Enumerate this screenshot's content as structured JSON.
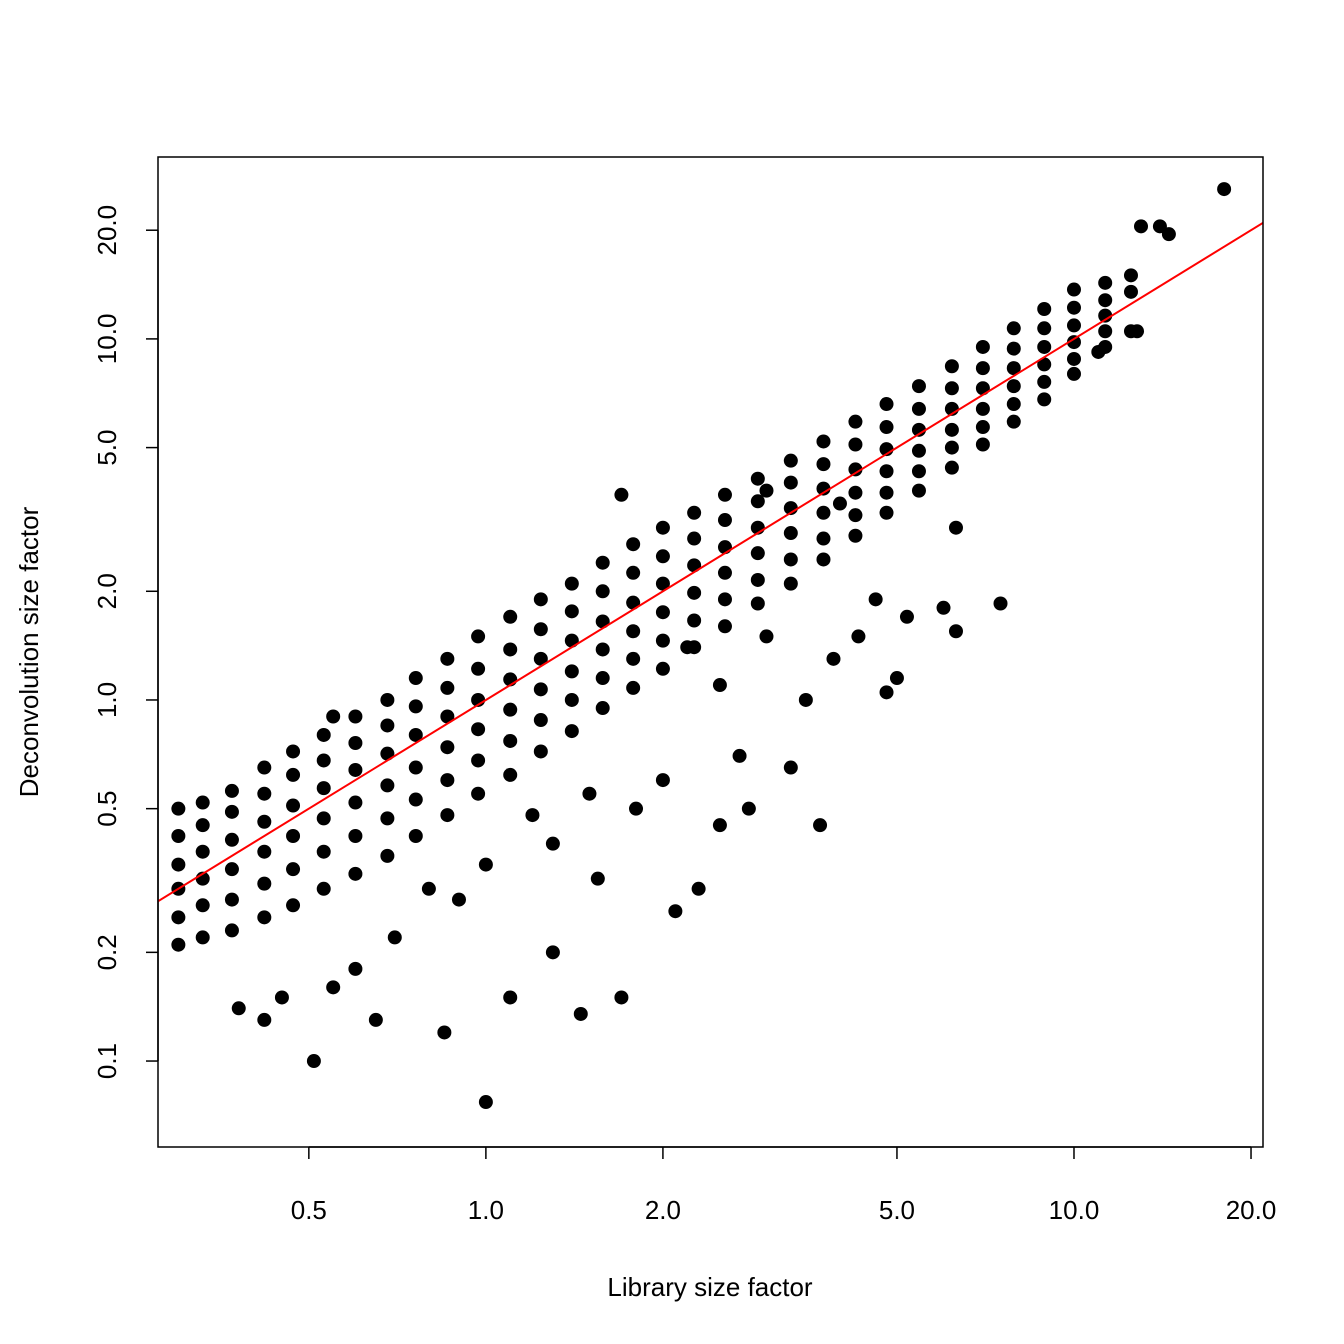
{
  "chart_data": {
    "type": "scatter",
    "x_label": "Library size factor",
    "y_label": "Deconvolution size factor",
    "xscale": "log",
    "yscale": "log",
    "xlim": [
      0.277,
      20.96
    ],
    "ylim": [
      0.0578,
      31.9
    ],
    "xticks": [
      0.5,
      {
        "value": 1,
        "label": "1.0"
      },
      {
        "value": 2,
        "label": "2.0"
      },
      {
        "value": 5,
        "label": "5.0"
      },
      {
        "value": 10,
        "label": "10.0"
      },
      {
        "value": 20,
        "label": "20.0"
      }
    ],
    "yticks": [
      0.1,
      0.2,
      0.5,
      {
        "value": 1,
        "label": "1.0"
      },
      {
        "value": 2,
        "label": "2.0"
      },
      {
        "value": 5,
        "label": "5.0"
      },
      {
        "value": 10,
        "label": "10.0"
      },
      {
        "value": 20,
        "label": "20.0"
      }
    ],
    "reference_line": {
      "slope": 1,
      "intercept": 0,
      "color": "#ff0000"
    },
    "color": "#000000",
    "x": [
      0.3,
      0.3,
      0.3,
      0.3,
      0.3,
      0.3,
      0.33,
      0.33,
      0.33,
      0.33,
      0.33,
      0.33,
      0.37,
      0.37,
      0.37,
      0.37,
      0.37,
      0.37,
      0.42,
      0.42,
      0.42,
      0.42,
      0.42,
      0.42,
      0.47,
      0.47,
      0.47,
      0.47,
      0.47,
      0.47,
      0.53,
      0.53,
      0.53,
      0.53,
      0.53,
      0.53,
      0.6,
      0.6,
      0.6,
      0.6,
      0.6,
      0.6,
      0.68,
      0.68,
      0.68,
      0.68,
      0.68,
      0.68,
      0.76,
      0.76,
      0.76,
      0.76,
      0.76,
      0.76,
      0.86,
      0.86,
      0.86,
      0.86,
      0.86,
      0.86,
      0.97,
      0.97,
      0.97,
      0.97,
      0.97,
      0.97,
      1.1,
      1.1,
      1.1,
      1.1,
      1.1,
      1.1,
      1.24,
      1.24,
      1.24,
      1.24,
      1.24,
      1.24,
      1.4,
      1.4,
      1.4,
      1.4,
      1.4,
      1.4,
      1.58,
      1.58,
      1.58,
      1.58,
      1.58,
      1.58,
      1.78,
      1.78,
      1.78,
      1.78,
      1.78,
      1.78,
      2.0,
      2.0,
      2.0,
      2.0,
      2.0,
      2.0,
      2.26,
      2.26,
      2.26,
      2.26,
      2.26,
      2.26,
      2.55,
      2.55,
      2.55,
      2.55,
      2.55,
      2.55,
      2.9,
      2.9,
      2.9,
      2.9,
      2.9,
      2.9,
      3.3,
      3.3,
      3.3,
      3.3,
      3.3,
      3.3,
      3.75,
      3.75,
      3.75,
      3.75,
      3.75,
      3.75,
      4.25,
      4.25,
      4.25,
      4.25,
      4.25,
      4.25,
      4.8,
      4.8,
      4.8,
      4.8,
      4.8,
      4.8,
      5.45,
      5.45,
      5.45,
      5.45,
      5.45,
      5.45,
      6.2,
      6.2,
      6.2,
      6.2,
      6.2,
      6.2,
      7.0,
      7.0,
      7.0,
      7.0,
      7.0,
      7.0,
      7.9,
      7.9,
      7.9,
      7.9,
      7.9,
      7.9,
      8.9,
      8.9,
      8.9,
      8.9,
      8.9,
      8.9,
      10,
      10,
      10,
      10,
      10,
      10,
      11.3,
      11.3,
      11.3,
      11.3,
      11.3,
      12.5,
      12.5,
      12.5,
      13,
      14,
      14.5,
      18,
      12.8,
      11,
      2.2,
      2.5,
      3.0,
      3.5,
      3.9,
      4.3,
      4.6,
      5.2,
      6.0,
      7.5,
      6.3,
      5.0,
      4.8,
      3.3,
      3.7,
      2.8,
      2.5,
      1.8,
      1.5,
      1.3,
      1.2,
      1.0,
      0.8,
      0.9,
      0.7,
      0.6,
      0.55,
      0.45,
      0.42,
      0.38,
      0.51,
      0.65,
      0.85,
      1.0,
      1.3,
      1.1,
      1.45,
      1.7,
      2.3,
      2.1,
      1.55,
      2.0,
      2.7,
      6.3,
      4.0,
      3.0,
      1.7,
      0.55
    ],
    "values": [
      0.21,
      0.25,
      0.3,
      0.35,
      0.42,
      0.5,
      0.22,
      0.27,
      0.32,
      0.38,
      0.45,
      0.52,
      0.23,
      0.28,
      0.34,
      0.41,
      0.49,
      0.56,
      0.25,
      0.31,
      0.38,
      0.46,
      0.55,
      0.65,
      0.27,
      0.34,
      0.42,
      0.51,
      0.62,
      0.72,
      0.3,
      0.38,
      0.47,
      0.57,
      0.68,
      0.8,
      0.33,
      0.42,
      0.52,
      0.64,
      0.76,
      0.9,
      0.37,
      0.47,
      0.58,
      0.71,
      0.85,
      1.0,
      0.42,
      0.53,
      0.65,
      0.8,
      0.96,
      1.15,
      0.48,
      0.6,
      0.74,
      0.9,
      1.08,
      1.3,
      0.55,
      0.68,
      0.83,
      1.0,
      1.22,
      1.5,
      0.62,
      0.77,
      0.94,
      1.14,
      1.38,
      1.7,
      0.72,
      0.88,
      1.07,
      1.3,
      1.57,
      1.9,
      0.82,
      1.0,
      1.2,
      1.46,
      1.76,
      2.1,
      0.95,
      1.15,
      1.38,
      1.65,
      2.0,
      2.4,
      1.08,
      1.3,
      1.55,
      1.86,
      2.25,
      2.7,
      1.22,
      1.46,
      1.75,
      2.1,
      2.5,
      3.0,
      1.4,
      1.66,
      1.98,
      2.36,
      2.8,
      3.3,
      1.6,
      1.9,
      2.25,
      2.65,
      3.15,
      3.7,
      1.85,
      2.15,
      2.55,
      3.0,
      3.55,
      4.1,
      2.1,
      2.45,
      2.9,
      3.4,
      4.0,
      4.6,
      2.45,
      2.8,
      3.3,
      3.85,
      4.5,
      5.2,
      2.85,
      3.25,
      3.75,
      4.35,
      5.1,
      5.9,
      3.3,
      3.75,
      4.3,
      4.95,
      5.7,
      6.6,
      3.8,
      4.3,
      4.9,
      5.6,
      6.4,
      7.4,
      4.4,
      5.0,
      5.6,
      6.4,
      7.3,
      8.4,
      5.1,
      5.7,
      6.4,
      7.3,
      8.3,
      9.5,
      5.9,
      6.6,
      7.4,
      8.3,
      9.4,
      10.7,
      6.8,
      7.6,
      8.5,
      9.5,
      10.7,
      12.1,
      8.0,
      8.8,
      9.8,
      10.9,
      12.2,
      13.7,
      9.5,
      10.5,
      11.6,
      12.8,
      14.3,
      10.5,
      13.5,
      15.0,
      20.5,
      20.5,
      19.5,
      26,
      10.5,
      9.2,
      1.4,
      1.1,
      1.5,
      1.0,
      1.3,
      1.5,
      1.9,
      1.7,
      1.8,
      1.85,
      1.55,
      1.15,
      1.05,
      0.65,
      0.45,
      0.5,
      0.45,
      0.5,
      0.55,
      0.4,
      0.48,
      0.35,
      0.3,
      0.28,
      0.22,
      0.18,
      0.16,
      0.15,
      0.13,
      0.14,
      0.1,
      0.13,
      0.12,
      0.077,
      0.2,
      0.15,
      0.135,
      0.15,
      0.3,
      0.26,
      0.32,
      0.6,
      0.7,
      3.0,
      3.5,
      3.8,
      3.7,
      0.9
    ]
  }
}
